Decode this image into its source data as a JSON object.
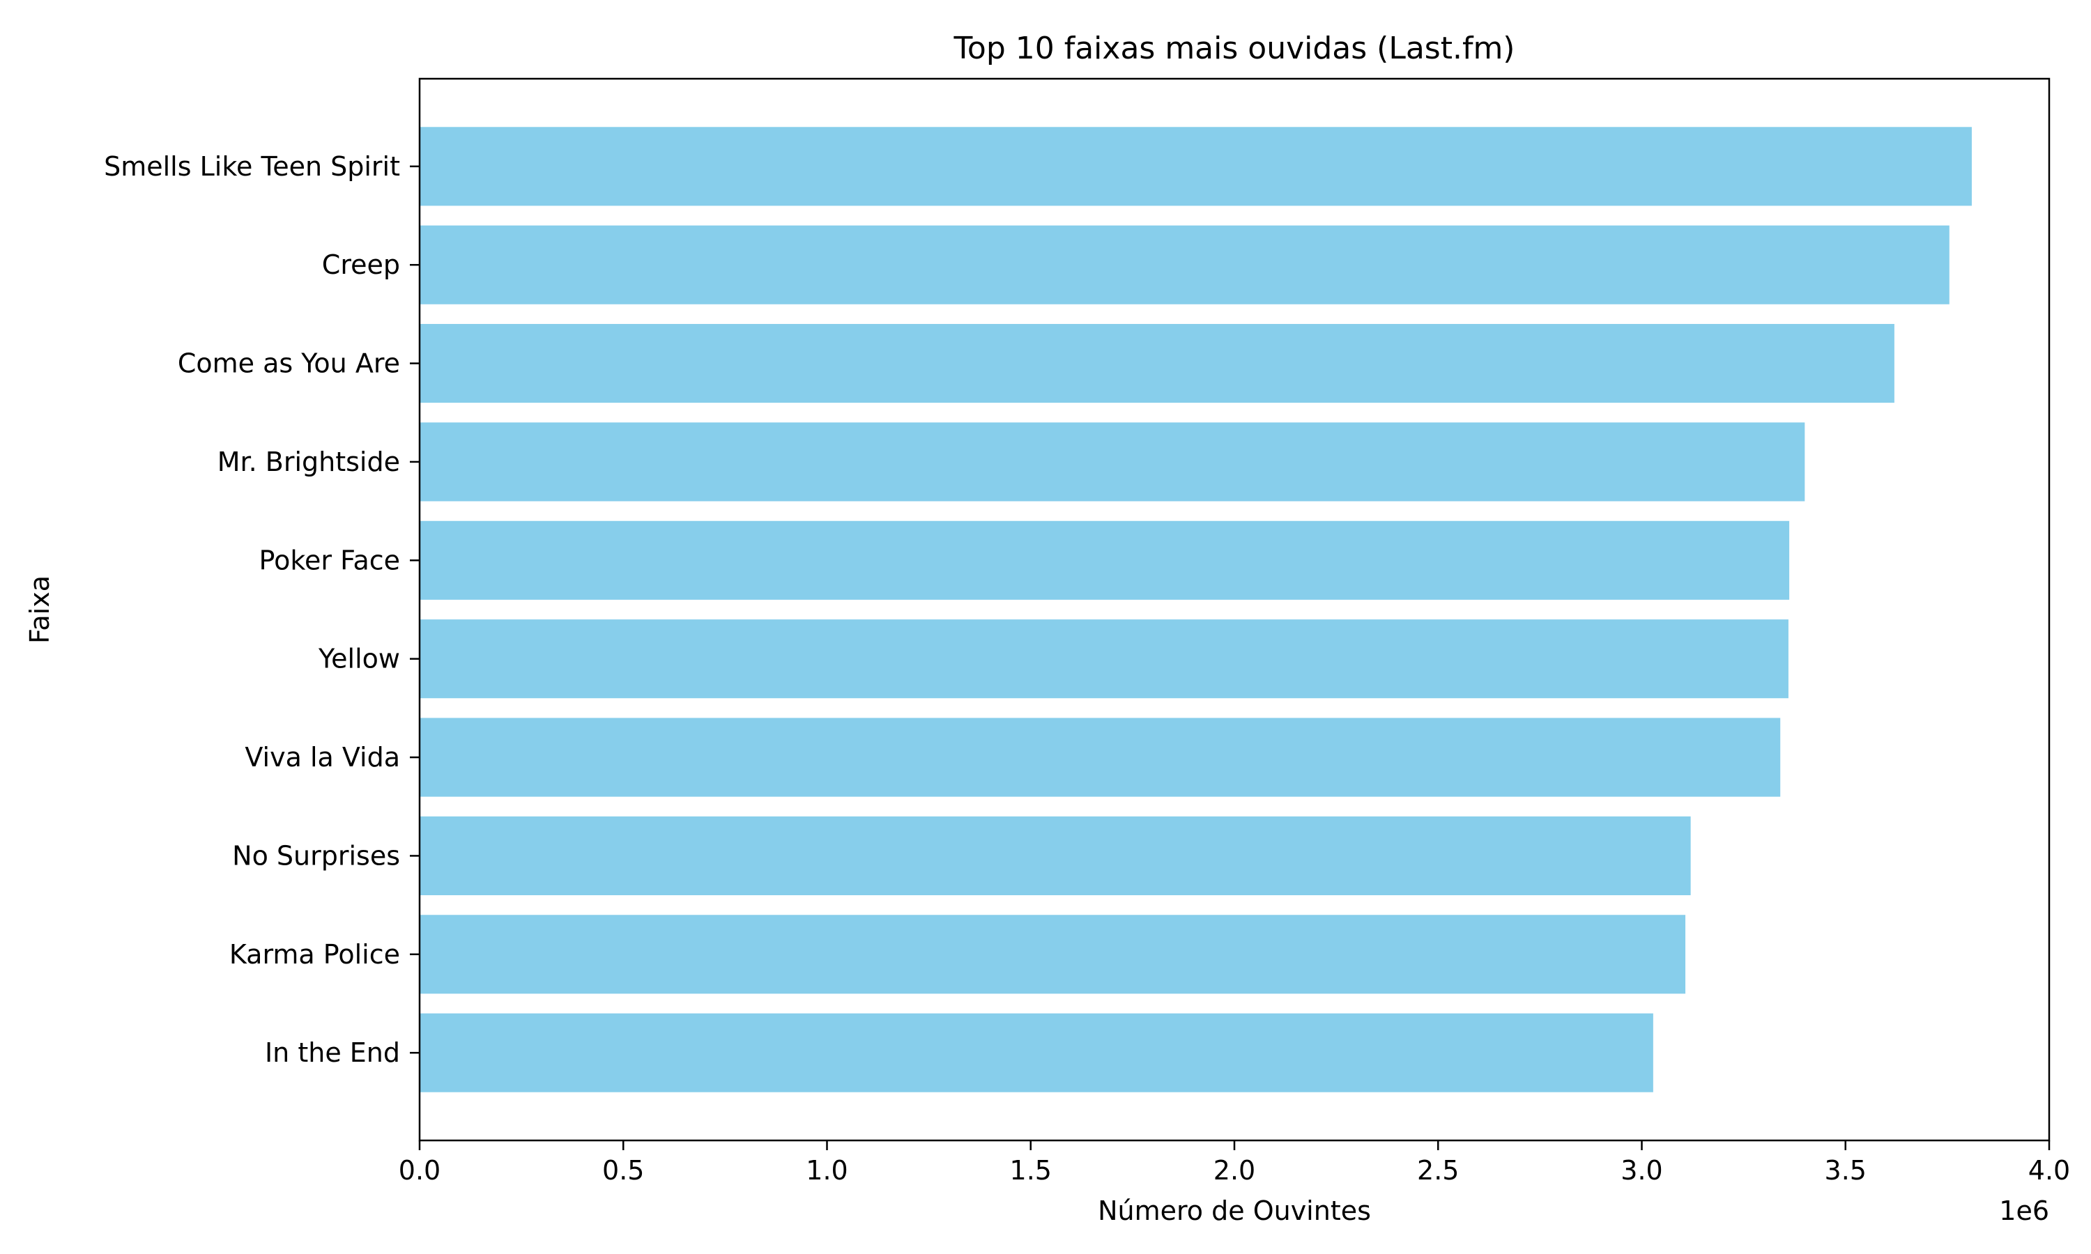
{
  "chart_data": {
    "type": "bar",
    "orientation": "horizontal",
    "title": "Top 10 faixas mais ouvidas (Last.fm)",
    "xlabel": "Número de Ouvintes",
    "ylabel": "Faixa",
    "x_offset_label": "1e6",
    "xlim": [
      0,
      4000000
    ],
    "x_ticks": [
      0,
      500000,
      1000000,
      1500000,
      2000000,
      2500000,
      3000000,
      3500000,
      4000000
    ],
    "x_tick_labels": [
      "0.0",
      "0.5",
      "1.0",
      "1.5",
      "2.0",
      "2.5",
      "3.0",
      "3.5",
      "4.0"
    ],
    "categories": [
      "Smells Like Teen Spirit",
      "Creep",
      "Come as You Are",
      "Mr. Brightside",
      "Poker Face",
      "Yellow",
      "Viva la Vida",
      "No Surprises",
      "Karma Police",
      "In the End"
    ],
    "values": [
      3810000,
      3755000,
      3620000,
      3400000,
      3362000,
      3360000,
      3340000,
      3120000,
      3107000,
      3028000
    ],
    "bar_color": "#87ceeb",
    "grid": false,
    "legend": false
  }
}
